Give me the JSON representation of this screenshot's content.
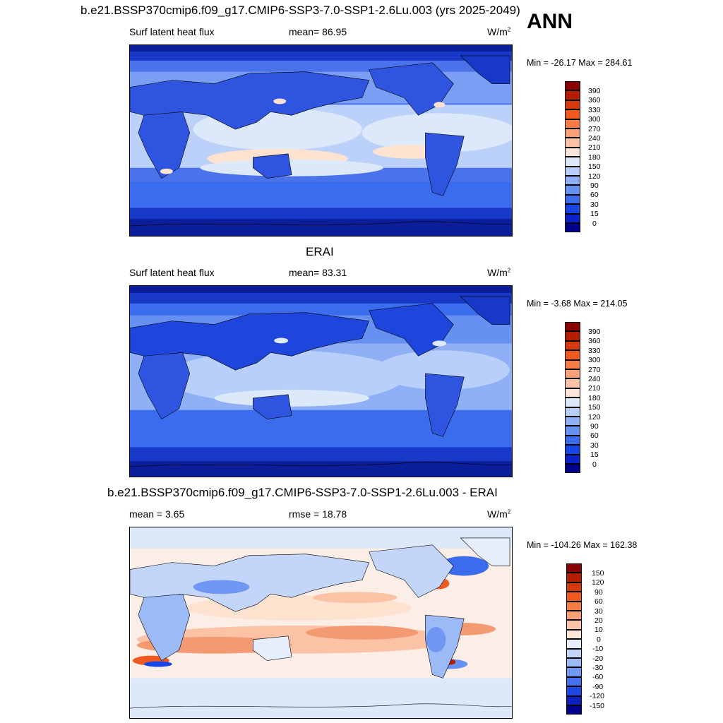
{
  "season": "ANN",
  "panels": [
    {
      "id": "model",
      "title": "b.e21.BSSP370cmip6.f09_g17.CMIP6-SSP3-7.0-SSP1-2.6Lu.003 (yrs 2025-2049)",
      "left_label": "Surf latent heat flux",
      "center_label": "mean=  86.95",
      "units": "W/m",
      "units_sup": "2",
      "minmax": "Min = -26.17 Max = 284.61",
      "colorbar_labels": [
        "390",
        "360",
        "330",
        "300",
        "270",
        "240",
        "210",
        "180",
        "150",
        "120",
        "90",
        "60",
        "30",
        "15",
        "0"
      ],
      "colorbar_colors": [
        "#8b0000",
        "#b51d00",
        "#d63a0c",
        "#f05a1e",
        "#f77c45",
        "#fa9f76",
        "#fcc2a6",
        "#fde6d7",
        "#dce9fb",
        "#b7cffa",
        "#8fb0f6",
        "#6690f2",
        "#3c6cee",
        "#1646e6",
        "#0a22c8",
        "#00008c"
      ]
    },
    {
      "id": "obs",
      "title": "ERAI",
      "left_label": "Surf latent heat flux",
      "center_label": "mean=  83.31",
      "units": "W/m",
      "units_sup": "2",
      "minmax": "Min =  -3.68 Max = 214.05",
      "colorbar_labels": [
        "390",
        "360",
        "330",
        "300",
        "270",
        "240",
        "210",
        "180",
        "150",
        "120",
        "90",
        "60",
        "30",
        "15",
        "0"
      ],
      "colorbar_colors": [
        "#8b0000",
        "#b51d00",
        "#d63a0c",
        "#f05a1e",
        "#f77c45",
        "#fa9f76",
        "#fcc2a6",
        "#fde6d7",
        "#dce9fb",
        "#b7cffa",
        "#8fb0f6",
        "#6690f2",
        "#3c6cee",
        "#1646e6",
        "#0a22c8",
        "#00008c"
      ]
    },
    {
      "id": "diff",
      "title": "b.e21.BSSP370cmip6.f09_g17.CMIP6-SSP3-7.0-SSP1-2.6Lu.003 - ERAI",
      "left_label": "mean =   3.65",
      "center_label": "rmse =  18.78",
      "units": "W/m",
      "units_sup": "2",
      "minmax": "Min = -104.26 Max = 162.38",
      "colorbar_labels": [
        "150",
        "120",
        "90",
        "60",
        "30",
        "20",
        "10",
        "0",
        "-10",
        "-20",
        "-30",
        "-60",
        "-90",
        "-120",
        "-150"
      ],
      "colorbar_colors": [
        "#8b0000",
        "#b51d00",
        "#d63a0c",
        "#f05a1e",
        "#f77c45",
        "#fa9f76",
        "#fcc2a6",
        "#fde6d7",
        "#e6eefc",
        "#c3d6fa",
        "#9cbaf6",
        "#7097f2",
        "#4470ee",
        "#1a46e2",
        "#0a20c0",
        "#00008c"
      ]
    }
  ],
  "colors": {
    "polar_dark": "#0a1e9c",
    "land_blue": "#2f55e0",
    "ocean_mid": "#7a9ef3",
    "ocean_light": "#bcd1fa",
    "warm_pale": "#fde2cf",
    "warm_mid": "#f6a27a",
    "warm_strong": "#e8552a",
    "diff_neutral": "#fbeee6",
    "diff_pos": "#f39a72",
    "diff_neg": "#8fb0f6"
  }
}
